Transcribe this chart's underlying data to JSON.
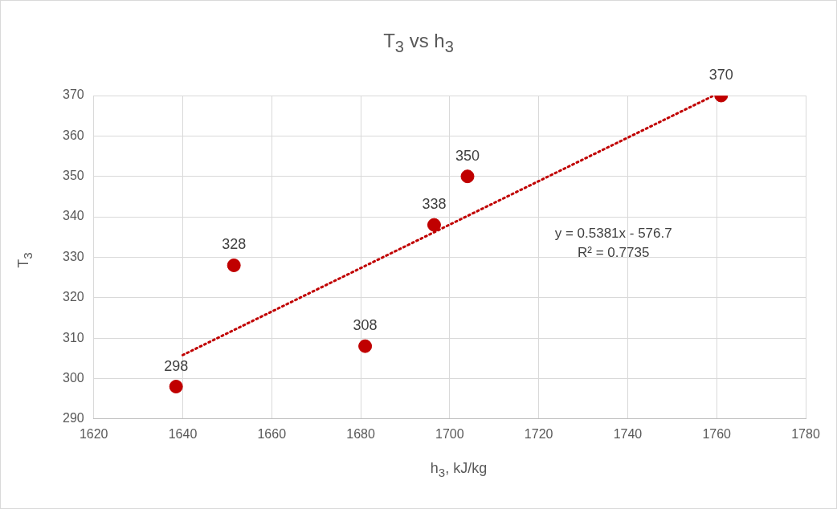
{
  "chart_data": {
    "type": "scatter",
    "title": "T$_{3}$ vs h$_{3}$",
    "xlabel": "h$_{3}$, kJ/kg",
    "ylabel": "T$_{3}$",
    "series": [
      {
        "color": "#c00000",
        "x": [
          1638.5,
          1651.5,
          1681,
          1696.5,
          1704,
          1761
        ],
        "values": [
          298,
          328,
          308,
          338,
          350,
          370
        ],
        "value_labels": [
          "298",
          "328",
          "308",
          "338",
          "350",
          "370"
        ]
      },
      {
        "type": "line",
        "color": "#c00000",
        "line_style": "dotted",
        "marker": "none",
        "x": [
          1640,
          1759
        ],
        "values": [
          305.8,
          369.8
        ]
      }
    ],
    "marker": "circle",
    "grid": true,
    "legend": false,
    "annotations": [
      "y = 0.5381x - 576.7",
      "R² = 0.7735"
    ],
    "xlim": [
      1620,
      1780
    ],
    "xticks": [
      1620,
      1640,
      1660,
      1680,
      1700,
      1720,
      1740,
      1760,
      1780
    ],
    "ylim": [
      290,
      370
    ],
    "yticks": [
      290,
      300,
      310,
      320,
      330,
      340,
      350,
      360,
      370
    ]
  }
}
